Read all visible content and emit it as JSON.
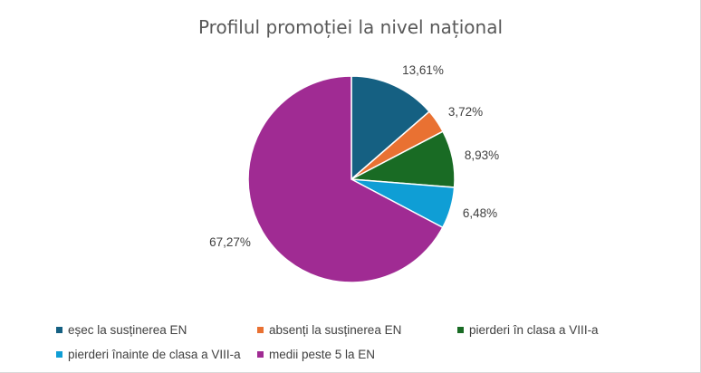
{
  "chart_data": {
    "type": "pie",
    "title": "Profilul promoției la nivel național",
    "categories": [
      "eșec la susținerea EN",
      "absenți la susținerea EN",
      "pierderi în clasa a VIII-a",
      "pierderi înainte de clasa a VIII-a",
      "medii peste 5 la EN"
    ],
    "values": [
      13.61,
      3.72,
      8.93,
      6.48,
      67.27
    ],
    "labels": [
      "13,61%",
      "3,72%",
      "8,93%",
      "6,48%",
      "67,27%"
    ],
    "colors": [
      "#156082",
      "#e97132",
      "#196b24",
      "#0f9ed5",
      "#a02b93"
    ],
    "legend_position": "bottom"
  }
}
